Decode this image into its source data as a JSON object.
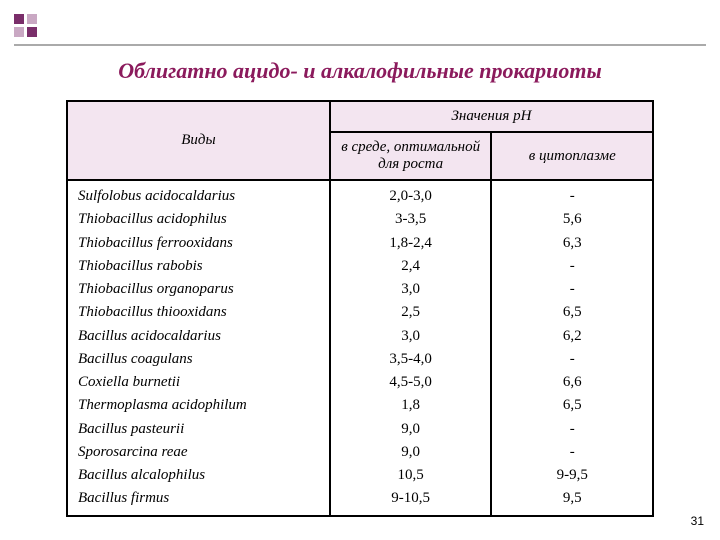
{
  "title": "Облигатно ацидо- и алкалофильные прокариоты",
  "headers": {
    "species": "Виды",
    "values": "Значения рН",
    "optimal": "в среде, оптимальной для роста",
    "cytoplasm": "в цитоплазме"
  },
  "rows": [
    {
      "species": "Sulfolobus acidocaldarius",
      "optimal": "2,0-3,0",
      "cytoplasm": "-"
    },
    {
      "species": "Thiobacillus acidophilus",
      "optimal": "3-3,5",
      "cytoplasm": "5,6"
    },
    {
      "species": "Thiobacillus ferrooxidans",
      "optimal": "1,8-2,4",
      "cytoplasm": "6,3"
    },
    {
      "species": "Thiobacillus rabobis",
      "optimal": "2,4",
      "cytoplasm": "-"
    },
    {
      "species": "Thiobacillus organoparus",
      "optimal": "3,0",
      "cytoplasm": "-"
    },
    {
      "species": "Thiobacillus thiooxidans",
      "optimal": "2,5",
      "cytoplasm": "6,5"
    },
    {
      "species": "Bacillus acidocaldarius",
      "optimal": "3,0",
      "cytoplasm": "6,2"
    },
    {
      "species": "Bacillus coagulans",
      "optimal": "3,5-4,0",
      "cytoplasm": "-"
    },
    {
      "species": "Coxiella burnetii",
      "optimal": "4,5-5,0",
      "cytoplasm": "6,6"
    },
    {
      "species": "Thermoplasma acidophilum",
      "optimal": "1,8",
      "cytoplasm": "6,5"
    },
    {
      "species": "Bacillus pasteurii",
      "optimal": "9,0",
      "cytoplasm": "-"
    },
    {
      "species": "Sporosarcina reae",
      "optimal": "9,0",
      "cytoplasm": "-"
    },
    {
      "species": "Bacillus alcalophilus",
      "optimal": "10,5",
      "cytoplasm": "9-9,5"
    },
    {
      "species": "Bacillus firmus",
      "optimal": "9-10,5",
      "cytoplasm": "9,5"
    }
  ],
  "page_number": "31",
  "colors": {
    "title_color": "#8b1a5c",
    "header_bg": "#f3e5f0",
    "border": "#000000",
    "deco_dark": "#7a2e6a",
    "deco_light": "#c9a8c3",
    "hr": "#aaaaaa"
  }
}
